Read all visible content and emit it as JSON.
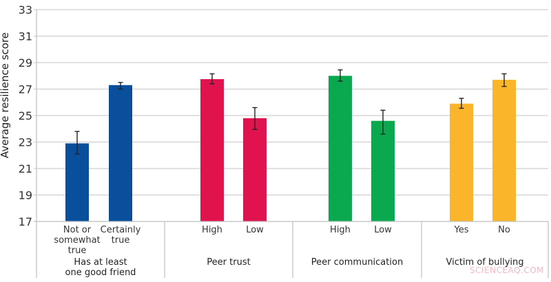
{
  "chart_data": {
    "type": "bar",
    "title": "",
    "xlabel": "",
    "ylabel": "Average resilience score",
    "ylim": [
      17,
      33
    ],
    "yticks": [
      17,
      19,
      21,
      23,
      25,
      27,
      29,
      31,
      33
    ],
    "grid": true,
    "legend": null,
    "groups": [
      {
        "name": "Has at least one good friend",
        "name_lines": [
          "Has at least",
          "one good friend"
        ],
        "color": "#0a4f9c",
        "bars": [
          {
            "label": "Not or somewhat true",
            "label_lines": [
              "Not or",
              "somewhat",
              "true"
            ],
            "value": 22.9,
            "err_low": 22.1,
            "err_high": 23.8
          },
          {
            "label": "Certainly true",
            "label_lines": [
              "Certainly",
              "true"
            ],
            "value": 27.3,
            "err_low": 27.0,
            "err_high": 27.5
          }
        ]
      },
      {
        "name": "Peer trust",
        "name_lines": [
          "Peer trust"
        ],
        "color": "#e0134f",
        "bars": [
          {
            "label": "High",
            "label_lines": [
              "High"
            ],
            "value": 27.75,
            "err_low": 27.4,
            "err_high": 28.15
          },
          {
            "label": "Low",
            "label_lines": [
              "Low"
            ],
            "value": 24.8,
            "err_low": 23.95,
            "err_high": 25.6
          }
        ]
      },
      {
        "name": "Peer communication",
        "name_lines": [
          "Peer communication"
        ],
        "color": "#0aa84f",
        "bars": [
          {
            "label": "High",
            "label_lines": [
              "High"
            ],
            "value": 28.0,
            "err_low": 27.6,
            "err_high": 28.45
          },
          {
            "label": "Low",
            "label_lines": [
              "Low"
            ],
            "value": 24.6,
            "err_low": 23.6,
            "err_high": 25.4
          }
        ]
      },
      {
        "name": "Victim of bullying",
        "name_lines": [
          "Victim of bullying"
        ],
        "color": "#fbb52a",
        "bars": [
          {
            "label": "Yes",
            "label_lines": [
              "Yes"
            ],
            "value": 25.9,
            "err_low": 25.55,
            "err_high": 26.3
          },
          {
            "label": "No",
            "label_lines": [
              "No"
            ],
            "value": 27.7,
            "err_low": 27.2,
            "err_high": 28.15
          }
        ]
      }
    ],
    "categories": [
      "Not or somewhat true",
      "Certainly true",
      "High",
      "Low",
      "High",
      "Low",
      "Yes",
      "No"
    ],
    "values": [
      22.9,
      27.3,
      27.75,
      24.8,
      28.0,
      24.6,
      25.9,
      27.7
    ]
  },
  "watermark": "SCIENCEAQ.COM"
}
